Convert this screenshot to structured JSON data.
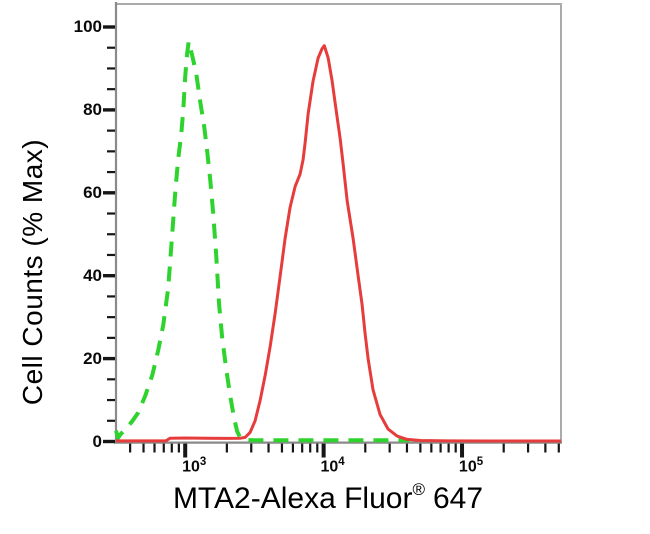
{
  "figure": {
    "background": "#ffffff",
    "xlabel_parts": {
      "main": "MTA2-Alexa Fluor",
      "registered": "®",
      "suffix": "647"
    }
  },
  "chart_data": {
    "type": "line",
    "subtype": "flow-cytometry-histogram",
    "title": "",
    "xlabel": "MTA2-Alexa Fluor® 647",
    "ylabel": "Cell Counts (% Max)",
    "x_scale": "log10",
    "x_domain_log10": [
      2.5,
      5.715
    ],
    "ylim": [
      0,
      105
    ],
    "grid": false,
    "legend": null,
    "x_tick_base": "10",
    "x_ticks_major_exponents": [
      3,
      4,
      5
    ],
    "x_minor_ticks": "2-9 per decade, log spaced",
    "y_ticks_major": [
      0,
      20,
      40,
      60,
      80,
      100
    ],
    "y_minor_step": 5,
    "colors": {
      "axis_dark": "#8a8a8a",
      "axis_light": "#ababab",
      "tick": "#161616",
      "text": "#000000"
    },
    "series": [
      {
        "id": "green-dashed",
        "name": "green dashed histogram",
        "style": "dashed",
        "color": "#2ed32e",
        "stroke_width": 4,
        "dash": "15 10",
        "peak_x_approx": 1050,
        "peak_y_percent": 96.5,
        "points": [
          [
            2.5,
            2.6
          ],
          [
            2.515,
            0.9
          ],
          [
            2.535,
            1.8
          ],
          [
            2.575,
            3.2
          ],
          [
            2.62,
            5
          ],
          [
            2.661,
            7
          ],
          [
            2.711,
            11
          ],
          [
            2.762,
            16
          ],
          [
            2.805,
            22
          ],
          [
            2.841,
            28
          ],
          [
            2.877,
            37
          ],
          [
            2.906,
            50
          ],
          [
            2.928,
            60
          ],
          [
            2.949,
            68
          ],
          [
            2.971,
            74
          ],
          [
            2.986,
            80
          ],
          [
            3.0,
            88
          ],
          [
            3.014,
            93.5
          ],
          [
            3.025,
            96.5
          ],
          [
            3.051,
            93
          ],
          [
            3.079,
            89
          ],
          [
            3.108,
            82
          ],
          [
            3.137,
            76
          ],
          [
            3.159,
            70
          ],
          [
            3.181,
            63
          ],
          [
            3.202,
            55
          ],
          [
            3.224,
            45
          ],
          [
            3.245,
            33
          ],
          [
            3.267,
            25
          ],
          [
            3.296,
            17.5
          ],
          [
            3.325,
            11
          ],
          [
            3.354,
            5.5
          ],
          [
            3.375,
            2.5
          ],
          [
            3.397,
            0.9
          ],
          [
            3.43,
            0.4
          ],
          [
            3.5,
            0.3
          ],
          [
            3.7,
            0.3
          ],
          [
            3.9,
            0.3
          ],
          [
            4.1,
            0.3
          ],
          [
            4.3,
            0.3
          ],
          [
            4.5,
            0.3
          ],
          [
            4.62,
            0.3
          ]
        ]
      },
      {
        "id": "red-solid",
        "name": "red solid histogram",
        "style": "solid",
        "color": "#e63c3c",
        "stroke_width": 3,
        "dash": null,
        "peak_x_approx": 10000,
        "peak_y_percent": 95.5,
        "points": [
          [
            2.5,
            0.15
          ],
          [
            2.86,
            0.15
          ],
          [
            2.89,
            0.8
          ],
          [
            3.0,
            0.85
          ],
          [
            3.15,
            0.8
          ],
          [
            3.3,
            0.75
          ],
          [
            3.4,
            0.8
          ],
          [
            3.433,
            1.0
          ],
          [
            3.469,
            2.2
          ],
          [
            3.505,
            5
          ],
          [
            3.542,
            10
          ],
          [
            3.578,
            16
          ],
          [
            3.614,
            23
          ],
          [
            3.65,
            31
          ],
          [
            3.686,
            40
          ],
          [
            3.722,
            49
          ],
          [
            3.758,
            56.5
          ],
          [
            3.794,
            61.5
          ],
          [
            3.83,
            64.5
          ],
          [
            3.852,
            68
          ],
          [
            3.866,
            72
          ],
          [
            3.888,
            79
          ],
          [
            3.924,
            87
          ],
          [
            3.96,
            92.5
          ],
          [
            3.989,
            94.8
          ],
          [
            4.005,
            95.5
          ],
          [
            4.033,
            92.5
          ],
          [
            4.061,
            87
          ],
          [
            4.09,
            80
          ],
          [
            4.12,
            73
          ],
          [
            4.141,
            67
          ],
          [
            4.17,
            58
          ],
          [
            4.213,
            49
          ],
          [
            4.249,
            40
          ],
          [
            4.278,
            33
          ],
          [
            4.3,
            26
          ],
          [
            4.321,
            20
          ],
          [
            4.357,
            12.5
          ],
          [
            4.408,
            6.5
          ],
          [
            4.466,
            3
          ],
          [
            4.531,
            1.3
          ],
          [
            4.603,
            0.5
          ],
          [
            4.7,
            0.25
          ],
          [
            4.9,
            0.15
          ],
          [
            5.2,
            0.12
          ],
          [
            5.5,
            0.12
          ],
          [
            5.715,
            0.12
          ]
        ]
      }
    ]
  }
}
